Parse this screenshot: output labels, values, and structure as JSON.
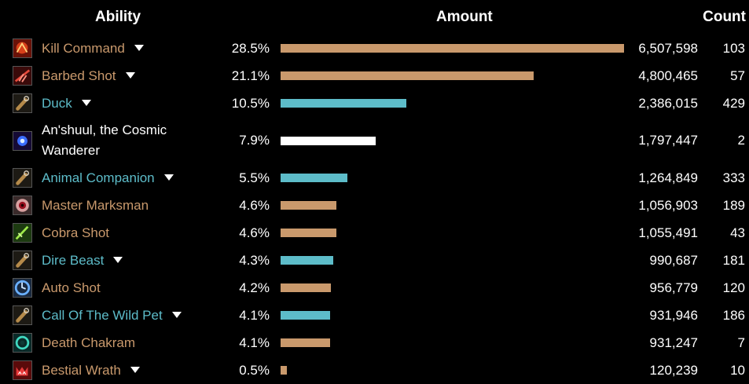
{
  "header": {
    "ability": "Ability",
    "amount": "Amount",
    "count": "Count"
  },
  "colors": {
    "tan": "#c9996c",
    "blue": "#5dbcc9",
    "white": "#ffffff"
  },
  "rows": [
    {
      "name": "Kill Command",
      "pct": "28.5%",
      "fraction": 1.0,
      "amount": "6,507,598",
      "count": "103",
      "color": "tan",
      "name_color": "#c9996c",
      "icon": "kill-command-icon",
      "caret": true
    },
    {
      "name": "Barbed Shot",
      "pct": "21.1%",
      "fraction": 0.7377,
      "amount": "4,800,465",
      "count": "57",
      "color": "tan",
      "name_color": "#c9996c",
      "icon": "barbed-shot-icon",
      "caret": true
    },
    {
      "name": "Duck",
      "pct": "10.5%",
      "fraction": 0.3667,
      "amount": "2,386,015",
      "count": "429",
      "color": "blue",
      "name_color": "#5dbcc9",
      "icon": "whistle-icon",
      "caret": true
    },
    {
      "name": "An'shuul, the Cosmic Wanderer",
      "pct": "7.9%",
      "fraction": 0.2762,
      "amount": "1,797,447",
      "count": "2",
      "color": "white",
      "name_color": "#ffffff",
      "icon": "cosmic-orb-icon",
      "caret": false
    },
    {
      "name": "Animal Companion",
      "pct": "5.5%",
      "fraction": 0.1944,
      "amount": "1,264,849",
      "count": "333",
      "color": "blue",
      "name_color": "#5dbcc9",
      "icon": "whistle-icon",
      "caret": true
    },
    {
      "name": "Master Marksman",
      "pct": "4.6%",
      "fraction": 0.1624,
      "amount": "1,056,903",
      "count": "189",
      "color": "tan",
      "name_color": "#c9996c",
      "icon": "eye-target-icon",
      "caret": false
    },
    {
      "name": "Cobra Shot",
      "pct": "4.6%",
      "fraction": 0.1622,
      "amount": "1,055,491",
      "count": "43",
      "color": "tan",
      "name_color": "#c9996c",
      "icon": "cobra-shot-icon",
      "caret": false
    },
    {
      "name": "Dire Beast",
      "pct": "4.3%",
      "fraction": 0.1522,
      "amount": "990,687",
      "count": "181",
      "color": "blue",
      "name_color": "#5dbcc9",
      "icon": "whistle-icon",
      "caret": true
    },
    {
      "name": "Auto Shot",
      "pct": "4.2%",
      "fraction": 0.147,
      "amount": "956,779",
      "count": "120",
      "color": "tan",
      "name_color": "#c9996c",
      "icon": "auto-shot-icon",
      "caret": false
    },
    {
      "name": "Call Of The Wild Pet",
      "pct": "4.1%",
      "fraction": 0.1432,
      "amount": "931,946",
      "count": "186",
      "color": "blue",
      "name_color": "#5dbcc9",
      "icon": "whistle-icon",
      "caret": true
    },
    {
      "name": "Death Chakram",
      "pct": "4.1%",
      "fraction": 0.1431,
      "amount": "931,247",
      "count": "7",
      "color": "tan",
      "name_color": "#c9996c",
      "icon": "death-chakram-icon",
      "caret": false
    },
    {
      "name": "Bestial Wrath",
      "pct": "0.5%",
      "fraction": 0.0185,
      "amount": "120,239",
      "count": "10",
      "color": "tan",
      "name_color": "#c9996c",
      "icon": "bestial-wrath-icon",
      "caret": true
    }
  ]
}
